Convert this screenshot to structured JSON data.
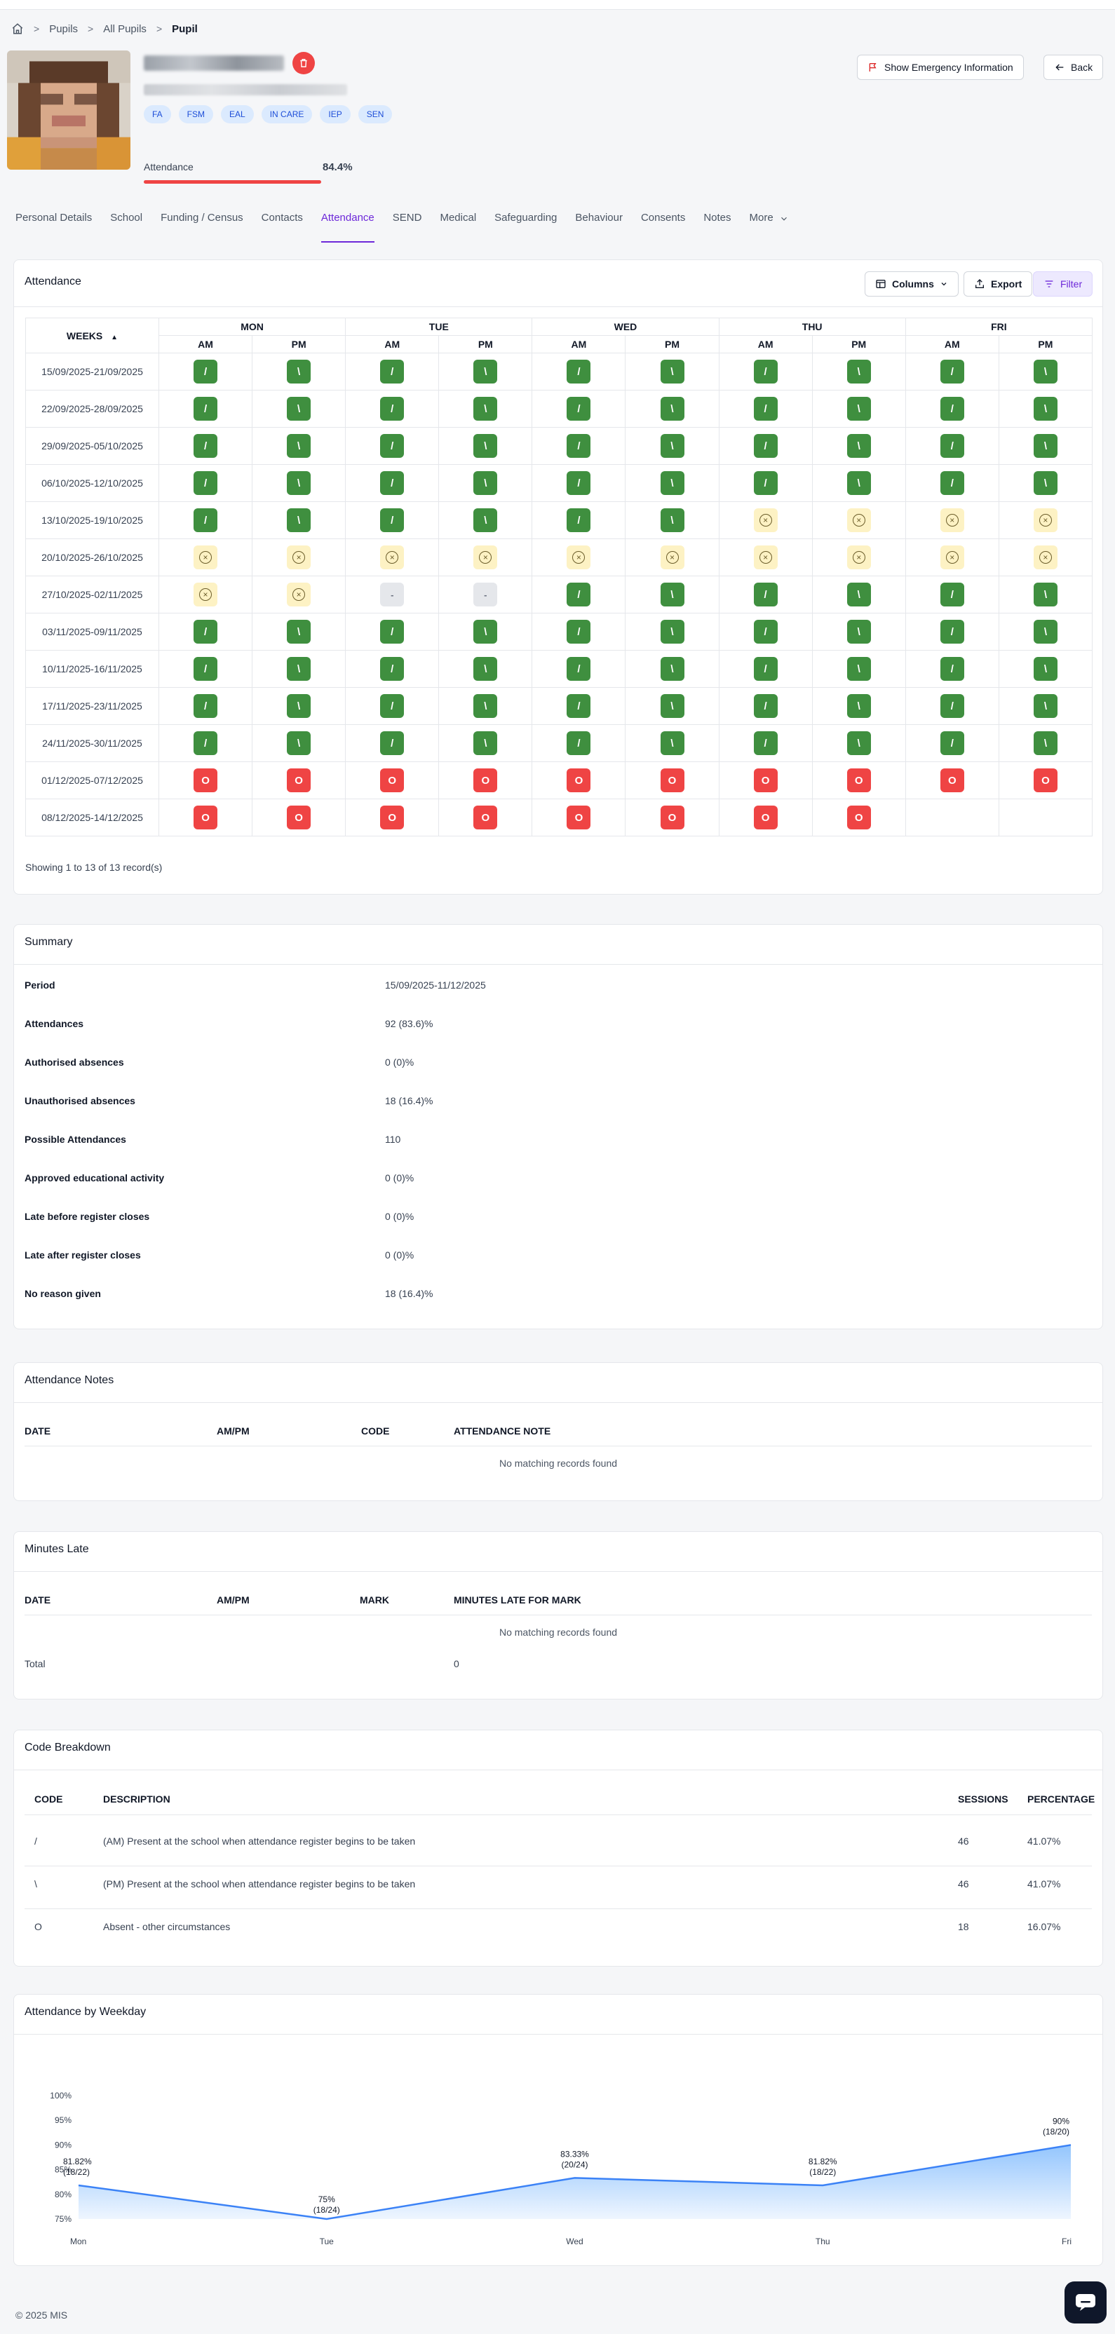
{
  "breadcrumb": {
    "items": [
      "Pupils",
      "All Pupils"
    ],
    "current": "Pupil"
  },
  "tags": [
    "FA",
    "FSM",
    "EAL",
    "IN CARE",
    "IEP",
    "SEN"
  ],
  "attendance_header": {
    "label": "Attendance",
    "value": "84.4%",
    "level": 0.844
  },
  "buttons": {
    "emergency": "Show Emergency Information",
    "back": "Back"
  },
  "tabs": [
    {
      "label": "Personal Details"
    },
    {
      "label": "School"
    },
    {
      "label": "Funding / Census"
    },
    {
      "label": "Contacts"
    },
    {
      "label": "Attendance"
    },
    {
      "label": "SEND"
    },
    {
      "label": "Medical"
    },
    {
      "label": "Safeguarding"
    },
    {
      "label": "Behaviour"
    },
    {
      "label": "Consents"
    },
    {
      "label": "Notes"
    },
    {
      "label": "More"
    }
  ],
  "active_tab": "Attendance",
  "attendance_card": {
    "title": "Attendance",
    "columns_btn": "Columns",
    "export_btn": "Export",
    "filter_btn": "Filter",
    "weeks_header": "WEEKS",
    "days": [
      "MON",
      "TUE",
      "WED",
      "THU",
      "FRI"
    ],
    "sessions": [
      "AM",
      "PM"
    ],
    "rows": [
      {
        "week": "15/09/2025-21/09/2025",
        "marks": [
          "/",
          "\\",
          "/",
          "\\",
          "/",
          "\\",
          "/",
          "\\",
          "/",
          "\\"
        ]
      },
      {
        "week": "22/09/2025-28/09/2025",
        "marks": [
          "/",
          "\\",
          "/",
          "\\",
          "/",
          "\\",
          "/",
          "\\",
          "/",
          "\\"
        ]
      },
      {
        "week": "29/09/2025-05/10/2025",
        "marks": [
          "/",
          "\\",
          "/",
          "\\",
          "/",
          "\\",
          "/",
          "\\",
          "/",
          "\\"
        ]
      },
      {
        "week": "06/10/2025-12/10/2025",
        "marks": [
          "/",
          "\\",
          "/",
          "\\",
          "/",
          "\\",
          "/",
          "\\",
          "/",
          "\\"
        ]
      },
      {
        "week": "13/10/2025-19/10/2025",
        "marks": [
          "/",
          "\\",
          "/",
          "\\",
          "/",
          "\\",
          "#",
          "#",
          "#",
          "#"
        ]
      },
      {
        "week": "20/10/2025-26/10/2025",
        "marks": [
          "#",
          "#",
          "#",
          "#",
          "#",
          "#",
          "#",
          "#",
          "#",
          "#"
        ]
      },
      {
        "week": "27/10/2025-02/11/2025",
        "marks": [
          "#",
          "#",
          "-",
          "-",
          "/",
          "\\",
          "/",
          "\\",
          "/",
          "\\"
        ]
      },
      {
        "week": "03/11/2025-09/11/2025",
        "marks": [
          "/",
          "\\",
          "/",
          "\\",
          "/",
          "\\",
          "/",
          "\\",
          "/",
          "\\"
        ]
      },
      {
        "week": "10/11/2025-16/11/2025",
        "marks": [
          "/",
          "\\",
          "/",
          "\\",
          "/",
          "\\",
          "/",
          "\\",
          "/",
          "\\"
        ]
      },
      {
        "week": "17/11/2025-23/11/2025",
        "marks": [
          "/",
          "\\",
          "/",
          "\\",
          "/",
          "\\",
          "/",
          "\\",
          "/",
          "\\"
        ]
      },
      {
        "week": "24/11/2025-30/11/2025",
        "marks": [
          "/",
          "\\",
          "/",
          "\\",
          "/",
          "\\",
          "/",
          "\\",
          "/",
          "\\"
        ]
      },
      {
        "week": "01/12/2025-07/12/2025",
        "marks": [
          "O",
          "O",
          "O",
          "O",
          "O",
          "O",
          "O",
          "O",
          "O",
          "O"
        ]
      },
      {
        "week": "08/12/2025-14/12/2025",
        "marks": [
          "O",
          "O",
          "O",
          "O",
          "O",
          "O",
          "O",
          "O",
          "",
          ""
        ]
      }
    ],
    "showing": "Showing 1 to 13 of 13 record(s)"
  },
  "summary": {
    "title": "Summary",
    "rows": [
      {
        "label": "Period",
        "value": "15/09/2025-11/12/2025"
      },
      {
        "label": "Attendances",
        "value": "92 (83.6)%"
      },
      {
        "label": "Authorised absences",
        "value": "0 (0)%"
      },
      {
        "label": "Unauthorised absences",
        "value": "18 (16.4)%"
      },
      {
        "label": "Possible Attendances",
        "value": "110"
      },
      {
        "label": "Approved educational activity",
        "value": "0 (0)%"
      },
      {
        "label": "Late before register closes",
        "value": "0 (0)%"
      },
      {
        "label": "Late after register closes",
        "value": "0 (0)%"
      },
      {
        "label": "No reason given",
        "value": "18 (16.4)%"
      }
    ]
  },
  "notes": {
    "title": "Attendance Notes",
    "headers": [
      "DATE",
      "AM/PM",
      "CODE",
      "ATTENDANCE NOTE"
    ],
    "empty": "No matching records found"
  },
  "minutes_late": {
    "title": "Minutes Late",
    "headers": [
      "DATE",
      "AM/PM",
      "MARK",
      "MINUTES LATE FOR MARK"
    ],
    "empty": "No matching records found",
    "total_label": "Total",
    "total_value": "0"
  },
  "code_breakdown": {
    "title": "Code Breakdown",
    "headers": [
      "CODE",
      "DESCRIPTION",
      "SESSIONS",
      "PERCENTAGE"
    ],
    "rows": [
      {
        "code": "/",
        "description": "(AM) Present at the school when attendance register begins to be taken",
        "sessions": "46",
        "percentage": "41.07%"
      },
      {
        "code": "\\",
        "description": "(PM) Present at the school when attendance register begins to be taken",
        "sessions": "46",
        "percentage": "41.07%"
      },
      {
        "code": "O",
        "description": "Absent - other circumstances",
        "sessions": "18",
        "percentage": "16.07%"
      }
    ]
  },
  "weekday_chart": {
    "title": "Attendance by Weekday",
    "colors": {
      "line": "#3b82f6",
      "fill_top": "#93c5fd",
      "fill_bottom": "#eff6ff"
    }
  },
  "chart_data": {
    "type": "area",
    "categories": [
      "Mon",
      "Tue",
      "Wed",
      "Thu",
      "Fri"
    ],
    "values": [
      81.82,
      75,
      83.33,
      81.82,
      90
    ],
    "data_labels": [
      [
        "81.82%",
        "(18/22)"
      ],
      [
        "75%",
        "(18/24)"
      ],
      [
        "83.33%",
        "(20/24)"
      ],
      [
        "81.82%",
        "(18/22)"
      ],
      [
        "90%",
        "(18/20)"
      ]
    ],
    "yticks": [
      "100%",
      "95%",
      "90%",
      "85%",
      "80%",
      "75%"
    ],
    "ylim": [
      75,
      100
    ],
    "title": "",
    "xlabel": "",
    "ylabel": ""
  },
  "footer": "© 2025 MIS"
}
